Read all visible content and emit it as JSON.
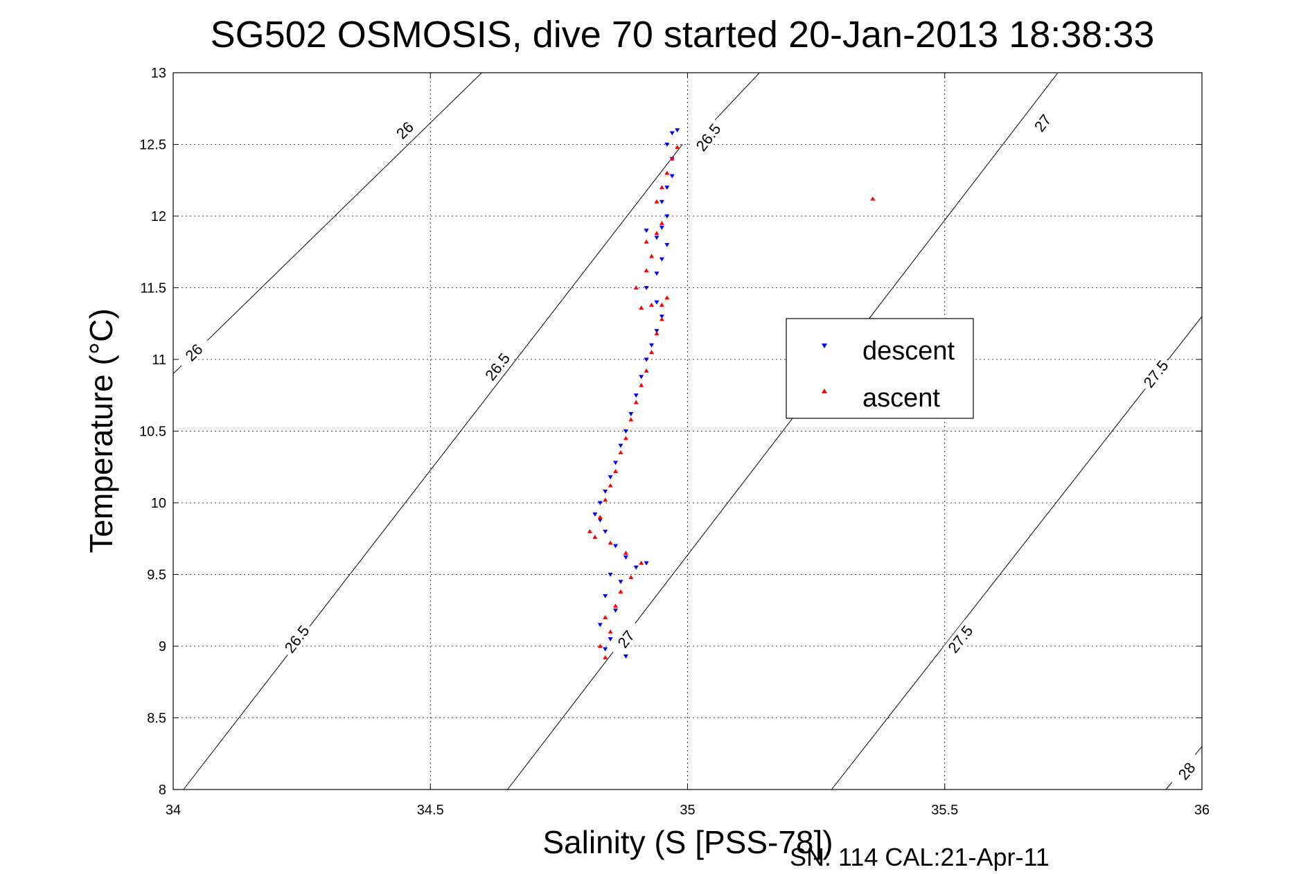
{
  "chart_data": {
    "type": "scatter",
    "title": "SG502 OSMOSIS, dive 70 started 20-Jan-2013 18:38:33",
    "xlabel": "Salinity (S [PSS-78])",
    "ylabel": "Temperature (°C)",
    "xlim": [
      34,
      36
    ],
    "ylim": [
      8,
      13
    ],
    "x_ticks": [
      "34",
      "34.5",
      "35",
      "35.5",
      "36"
    ],
    "y_ticks": [
      "8",
      "8.5",
      "9",
      "9.5",
      "10",
      "10.5",
      "11",
      "11.5",
      "12",
      "12.5",
      "13"
    ],
    "grid": true,
    "legend_position": "center-right",
    "series": [
      {
        "name": "descent",
        "color": "#0000ff",
        "marker": "triangle-down",
        "points": [
          [
            34.84,
            8.98
          ],
          [
            34.85,
            9.05
          ],
          [
            34.83,
            9.15
          ],
          [
            34.86,
            9.25
          ],
          [
            34.84,
            9.35
          ],
          [
            34.87,
            9.45
          ],
          [
            34.85,
            9.5
          ],
          [
            34.9,
            9.55
          ],
          [
            34.88,
            9.62
          ],
          [
            34.92,
            9.58
          ],
          [
            34.86,
            9.7
          ],
          [
            34.84,
            9.8
          ],
          [
            34.83,
            9.88
          ],
          [
            34.82,
            9.92
          ],
          [
            34.83,
            10.0
          ],
          [
            34.84,
            10.08
          ],
          [
            34.85,
            10.18
          ],
          [
            34.86,
            10.28
          ],
          [
            34.87,
            10.4
          ],
          [
            34.88,
            10.5
          ],
          [
            34.89,
            10.62
          ],
          [
            34.9,
            10.75
          ],
          [
            34.91,
            10.88
          ],
          [
            34.92,
            11.0
          ],
          [
            34.93,
            11.1
          ],
          [
            34.94,
            11.2
          ],
          [
            34.95,
            11.3
          ],
          [
            34.94,
            11.4
          ],
          [
            34.92,
            11.5
          ],
          [
            34.94,
            11.6
          ],
          [
            34.95,
            11.7
          ],
          [
            34.96,
            11.8
          ],
          [
            34.94,
            11.85
          ],
          [
            34.92,
            11.9
          ],
          [
            34.95,
            11.92
          ],
          [
            34.96,
            12.0
          ],
          [
            34.95,
            12.1
          ],
          [
            34.96,
            12.2
          ],
          [
            34.97,
            12.28
          ],
          [
            34.97,
            12.4
          ],
          [
            34.96,
            12.5
          ],
          [
            34.97,
            12.58
          ],
          [
            34.98,
            12.6
          ],
          [
            34.88,
            8.93
          ]
        ]
      },
      {
        "name": "ascent",
        "color": "#ff0000",
        "marker": "triangle-up",
        "points": [
          [
            34.84,
            8.92
          ],
          [
            34.83,
            9.0
          ],
          [
            34.85,
            9.1
          ],
          [
            34.84,
            9.2
          ],
          [
            34.86,
            9.28
          ],
          [
            34.87,
            9.38
          ],
          [
            34.89,
            9.48
          ],
          [
            34.91,
            9.58
          ],
          [
            34.88,
            9.65
          ],
          [
            34.85,
            9.72
          ],
          [
            34.82,
            9.76
          ],
          [
            34.81,
            9.8
          ],
          [
            34.83,
            9.9
          ],
          [
            34.84,
            10.02
          ],
          [
            34.85,
            10.12
          ],
          [
            34.86,
            10.22
          ],
          [
            34.87,
            10.35
          ],
          [
            34.88,
            10.45
          ],
          [
            34.89,
            10.58
          ],
          [
            34.9,
            10.7
          ],
          [
            34.91,
            10.82
          ],
          [
            34.92,
            10.92
          ],
          [
            34.93,
            11.05
          ],
          [
            34.94,
            11.18
          ],
          [
            34.95,
            11.28
          ],
          [
            34.95,
            11.38
          ],
          [
            34.96,
            11.43
          ],
          [
            34.93,
            11.38
          ],
          [
            34.91,
            11.36
          ],
          [
            34.9,
            11.5
          ],
          [
            34.92,
            11.62
          ],
          [
            34.93,
            11.72
          ],
          [
            34.92,
            11.82
          ],
          [
            34.94,
            11.88
          ],
          [
            34.95,
            11.95
          ],
          [
            34.94,
            12.1
          ],
          [
            34.95,
            12.2
          ],
          [
            34.96,
            12.3
          ],
          [
            34.97,
            12.4
          ],
          [
            34.98,
            12.48
          ],
          [
            35.36,
            12.12
          ]
        ]
      }
    ],
    "isopycnals": [
      {
        "label": "26",
        "segments": [
          [
            34.0,
            10.9,
            34.6,
            13.0
          ]
        ],
        "label_at": [
          [
            34.04,
            11.05
          ],
          [
            34.45,
            12.6
          ]
        ]
      },
      {
        "label": "26.5",
        "segments": [
          [
            34.02,
            8.0,
            34.99,
            12.5
          ],
          [
            35.04,
            12.62,
            35.14,
            13.0
          ]
        ],
        "label_at": [
          [
            34.24,
            9.05
          ],
          [
            34.63,
            10.95
          ],
          [
            35.04,
            12.55
          ]
        ]
      },
      {
        "label": "27",
        "segments": [
          [
            34.65,
            8.0,
            35.72,
            13.0
          ]
        ],
        "label_at": [
          [
            34.88,
            9.05
          ],
          [
            35.69,
            12.65
          ]
        ]
      },
      {
        "label": "27.5",
        "segments": [
          [
            35.28,
            8.0,
            36.0,
            11.3
          ]
        ],
        "label_at": [
          [
            35.53,
            9.05
          ],
          [
            35.91,
            10.9
          ]
        ]
      },
      {
        "label": "28",
        "segments": [
          [
            35.93,
            8.0,
            36.0,
            8.3
          ]
        ],
        "label_at": [
          [
            35.97,
            8.13
          ]
        ]
      }
    ]
  },
  "legend": {
    "descent_label": "descent",
    "ascent_label": "ascent"
  },
  "footer": {
    "text": "SN: 114  CAL:21-Apr-11"
  }
}
